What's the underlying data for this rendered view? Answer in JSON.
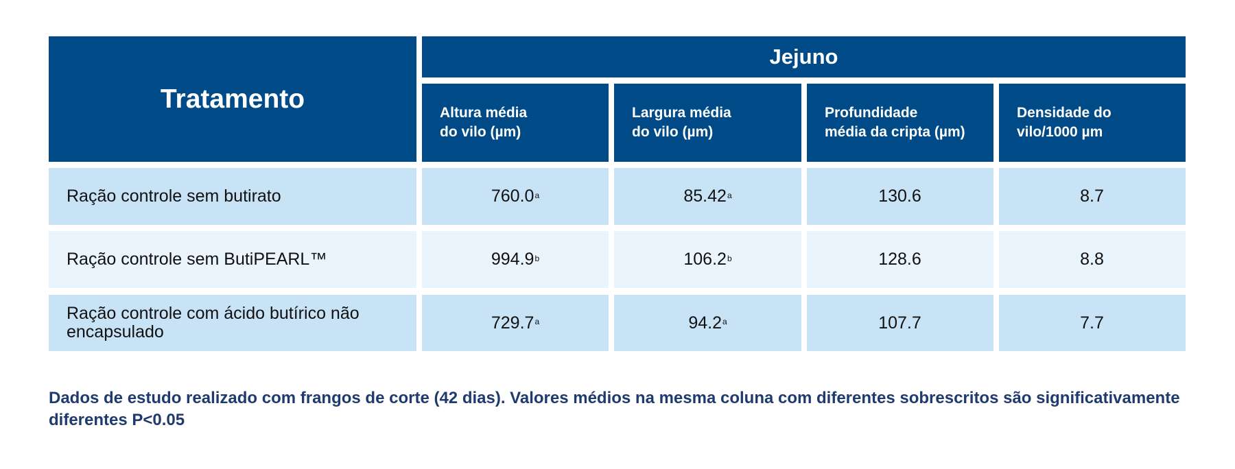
{
  "table": {
    "treatment_header": "Tratamento",
    "group_header": "Jejuno",
    "columns": [
      "Altura média\ndo vilo (µm)",
      "Largura média\ndo vilo (µm)",
      "Profundidade\nmédia da cripta (µm)",
      "Densidade do\nvilo/1000 µm"
    ],
    "rows": [
      {
        "treatment": "Ração controle sem butirato",
        "values": [
          {
            "value": "760.0",
            "sup": "a"
          },
          {
            "value": "85.42",
            "sup": "a"
          },
          {
            "value": "130.6",
            "sup": ""
          },
          {
            "value": "8.7",
            "sup": ""
          }
        ]
      },
      {
        "treatment": "Ração controle sem ButiPEARL™",
        "values": [
          {
            "value": "994.9",
            "sup": "b"
          },
          {
            "value": "106.2",
            "sup": "b"
          },
          {
            "value": "128.6",
            "sup": ""
          },
          {
            "value": "8.8",
            "sup": ""
          }
        ]
      },
      {
        "treatment": "Ração controle com ácido butírico não encapsulado",
        "values": [
          {
            "value": "729.7",
            "sup": "a"
          },
          {
            "value": "94.2",
            "sup": "a"
          },
          {
            "value": "107.7",
            "sup": ""
          },
          {
            "value": "7.7",
            "sup": ""
          }
        ]
      }
    ]
  },
  "footnote": "Dados de estudo realizado com frangos de corte (42 dias). Valores médios na mesma coluna com diferentes sobrescritos são significativamente diferentes P<0.05",
  "colors": {
    "header_bg": "#004b87",
    "row_dark": "#c8e3f6",
    "row_light": "#eaf4fc",
    "footnote_text": "#1e3a6e"
  }
}
